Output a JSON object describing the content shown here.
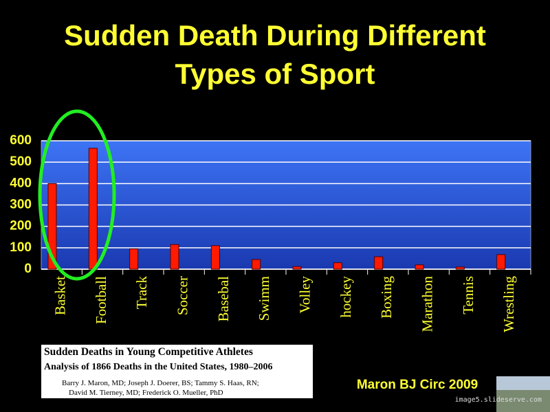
{
  "chart_data": {
    "type": "bar",
    "title": "Sudden Death During Different Types of Sport",
    "categories": [
      "Basket",
      "Football",
      "Track",
      "Soccer",
      "Basebal",
      "Swimm",
      "Volley",
      "hockey",
      "Boxing",
      "Marathon",
      "Tennis",
      "Wrestling"
    ],
    "values": [
      400,
      565,
      95,
      115,
      110,
      45,
      12,
      30,
      58,
      20,
      10,
      68
    ],
    "color": "#ff1a00",
    "ylim": [
      0,
      600
    ],
    "yticks": [
      0,
      100,
      200,
      300,
      400,
      500,
      600
    ],
    "grid": true
  },
  "citation": {
    "title": "Sudden Deaths in Young Competitive Athletes",
    "subtitle": "Analysis of 1866 Deaths in the United States, 1980–2006",
    "authors": [
      "Barry J. Maron, MD; Joseph J. Doerer, BS; Tammy S. Haas, RN;",
      "David M. Tierney, MD; Frederick O. Mueller, PhD"
    ]
  },
  "credit": "Maron BJ Circ 2009",
  "watermark": "image5.slideserve.com"
}
